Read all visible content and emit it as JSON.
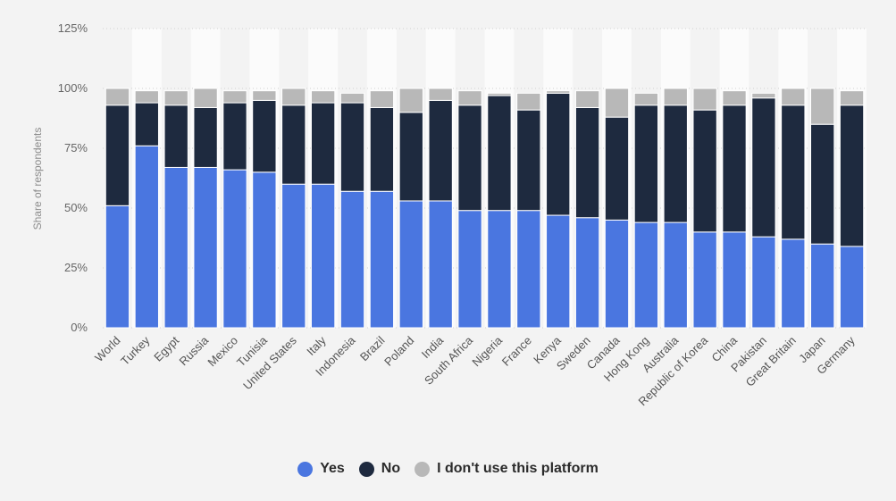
{
  "chart_data": {
    "type": "bar",
    "stacked": true,
    "ylabel": "Share of respondents",
    "ylim": [
      0,
      125
    ],
    "yticks": [
      "0%",
      "25%",
      "50%",
      "75%",
      "100%",
      "125%"
    ],
    "grid": true,
    "legend_position": "bottom",
    "categories": [
      "World",
      "Turkey",
      "Egypt",
      "Russia",
      "Mexico",
      "Tunisia",
      "United States",
      "Italy",
      "Indonesia",
      "Brazil",
      "Poland",
      "India",
      "South Africa",
      "Nigeria",
      "France",
      "Kenya",
      "Sweden",
      "Canada",
      "Hong Kong",
      "Australia",
      "Republic of Korea",
      "China",
      "Pakistan",
      "Great Britain",
      "Japan",
      "Germany"
    ],
    "series": [
      {
        "name": "Yes",
        "color": "#4a76e0",
        "values": [
          51,
          76,
          67,
          67,
          66,
          65,
          60,
          60,
          57,
          57,
          53,
          53,
          49,
          49,
          49,
          47,
          46,
          45,
          44,
          44,
          40,
          40,
          38,
          37,
          35,
          34
        ]
      },
      {
        "name": "No",
        "color": "#1e2a3f",
        "values": [
          42,
          18,
          26,
          25,
          28,
          30,
          33,
          34,
          37,
          35,
          37,
          42,
          44,
          48,
          42,
          51,
          46,
          43,
          49,
          49,
          51,
          53,
          58,
          56,
          50,
          59
        ]
      },
      {
        "name": "I don't use this platform",
        "color": "#b8b8b8",
        "values": [
          7,
          5,
          6,
          8,
          5,
          4,
          7,
          5,
          4,
          7,
          10,
          5,
          6,
          1,
          7,
          1,
          7,
          12,
          5,
          7,
          9,
          6,
          2,
          7,
          15,
          6
        ]
      }
    ]
  }
}
